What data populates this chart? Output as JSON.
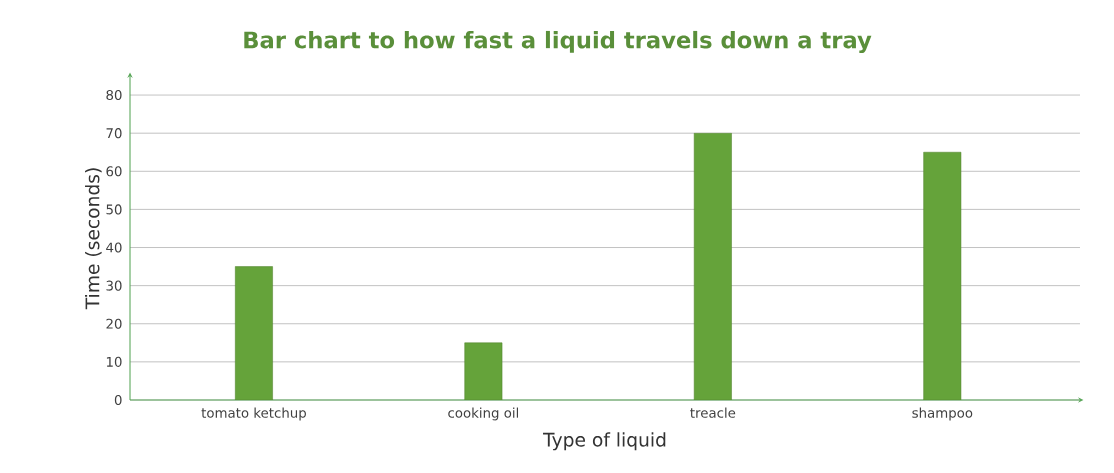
{
  "chart_data": {
    "type": "bar",
    "title": "Bar chart to how fast a liquid travels down a tray",
    "xlabel": "Type of liquid",
    "ylabel": "Time (seconds)",
    "categories": [
      "tomato ketchup",
      "cooking oil",
      "treacle",
      "shampoo"
    ],
    "values": [
      35,
      15,
      70,
      65
    ],
    "color": "#65a33a",
    "ylim": [
      0,
      85
    ],
    "yticks": [
      0,
      10,
      20,
      30,
      40,
      50,
      60,
      70,
      80
    ],
    "grid": "y"
  }
}
